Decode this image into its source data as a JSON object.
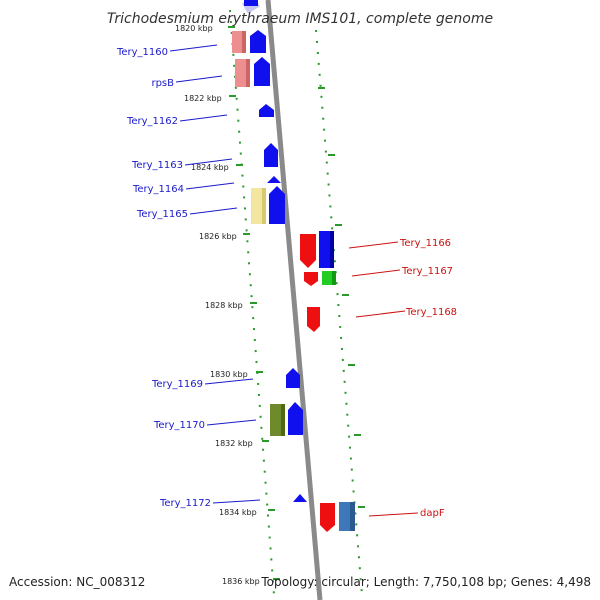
{
  "header": {
    "title": "Trichodesmium erythraeum IMS101, complete genome"
  },
  "footer": {
    "accession": "Accession: NC_008312",
    "summary": "Topology: circular; Length: 7,750,108 bp; Genes: 4,498"
  },
  "colors": {
    "backbone": "#8a8a8a",
    "scale_dots": "#2a9a2a",
    "forward_label": "#1a1acc",
    "reverse_label": "#cc1111"
  },
  "scale": {
    "unit": "kbp",
    "ticks": [
      "1820 kbp",
      "1822 kbp",
      "1824 kbp",
      "1826 kbp",
      "1828 kbp",
      "1830 kbp",
      "1832 kbp",
      "1834 kbp",
      "1836 kbp"
    ]
  },
  "genes": {
    "forward": [
      {
        "label": "Tery_1160"
      },
      {
        "label": "rpsB"
      },
      {
        "label": "Tery_1162"
      },
      {
        "label": "Tery_1163"
      },
      {
        "label": "Tery_1164"
      },
      {
        "label": "Tery_1165"
      },
      {
        "label": "Tery_1169"
      },
      {
        "label": "Tery_1170"
      },
      {
        "label": "Tery_1172"
      }
    ],
    "reverse": [
      {
        "label": "Tery_1166"
      },
      {
        "label": "Tery_1167"
      },
      {
        "label": "Tery_1168"
      },
      {
        "label": "dapF"
      }
    ]
  }
}
